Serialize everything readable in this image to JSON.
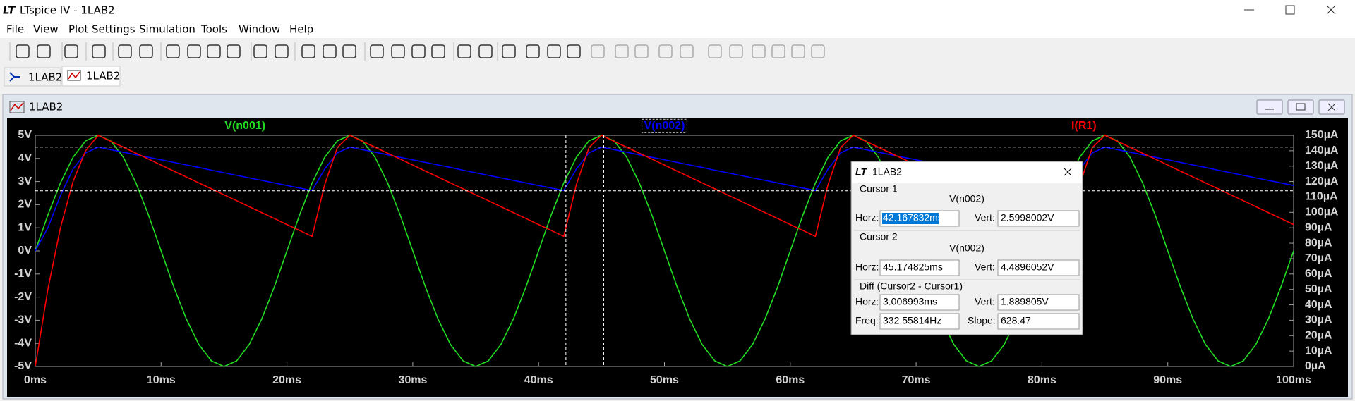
{
  "window": {
    "title": "LTspice IV - 1LAB2"
  },
  "menu": [
    "File",
    "View",
    "Plot Settings",
    "Simulation",
    "Tools",
    "Window",
    "Help"
  ],
  "tabs": [
    "1LAB2",
    "1LAB2"
  ],
  "plot_window": {
    "title": "1LAB2"
  },
  "chart_data": {
    "type": "line",
    "x": [
      0,
      1,
      2,
      3,
      4,
      5,
      6,
      7,
      8,
      9,
      10,
      11,
      12,
      13,
      14,
      15,
      16,
      17,
      18,
      19,
      20,
      21,
      22,
      23,
      24,
      25,
      26,
      27,
      28,
      29,
      30,
      31,
      32,
      33,
      34,
      35,
      36,
      37,
      38,
      39,
      40,
      41,
      42,
      43,
      44,
      45,
      46,
      47,
      48,
      49,
      50,
      51,
      52,
      53,
      54,
      55,
      56,
      57,
      58,
      59,
      60,
      61,
      62,
      63,
      64,
      65,
      66,
      67,
      68,
      69,
      70,
      71,
      72,
      73,
      74,
      75,
      76,
      77,
      78,
      79,
      80,
      81,
      82,
      83,
      84,
      85,
      86,
      87,
      88,
      89,
      90,
      91,
      92,
      93,
      94,
      95,
      96,
      97,
      98,
      99,
      100
    ],
    "series": [
      {
        "name": "V(n001)",
        "color": "#22dd22",
        "values": [
          0,
          1.55,
          2.94,
          4.05,
          4.76,
          5,
          4.76,
          4.05,
          2.94,
          1.55,
          0,
          -1.55,
          -2.94,
          -4.05,
          -4.76,
          -5,
          -4.76,
          -4.05,
          -2.94,
          -1.55,
          0,
          1.55,
          2.94,
          4.05,
          4.76,
          5,
          4.76,
          4.05,
          2.94,
          1.55,
          0,
          -1.55,
          -2.94,
          -4.05,
          -4.76,
          -5,
          -4.76,
          -4.05,
          -2.94,
          -1.55,
          0,
          1.55,
          2.94,
          4.05,
          4.76,
          5,
          4.76,
          4.05,
          2.94,
          1.55,
          0,
          -1.55,
          -2.94,
          -4.05,
          -4.76,
          -5,
          -4.76,
          -4.05,
          -2.94,
          -1.55,
          0,
          1.55,
          2.94,
          4.05,
          4.76,
          5,
          4.76,
          4.05,
          2.94,
          1.55,
          0,
          -1.55,
          -2.94,
          -4.05,
          -4.76,
          -5,
          -4.76,
          -4.05,
          -2.94,
          -1.55,
          0,
          1.55,
          2.94,
          4.05,
          4.76,
          5,
          4.76,
          4.05,
          2.94,
          1.55,
          0,
          -1.55,
          -2.94,
          -4.05,
          -4.76,
          -5,
          -4.76,
          -4.05,
          -2.94,
          -1.55,
          0
        ]
      },
      {
        "name": "V(n002)",
        "color": "#0000ff",
        "values": [
          0,
          1.0,
          2.4,
          3.54,
          4.24,
          4.49,
          4.38,
          4.27,
          4.16,
          4.05,
          3.94,
          3.83,
          3.72,
          3.61,
          3.49,
          3.38,
          3.27,
          3.16,
          3.05,
          2.94,
          2.83,
          2.72,
          2.61,
          3.54,
          4.24,
          4.49,
          4.38,
          4.27,
          4.16,
          4.05,
          3.94,
          3.83,
          3.72,
          3.61,
          3.49,
          3.38,
          3.27,
          3.16,
          3.05,
          2.94,
          2.83,
          2.72,
          2.61,
          3.54,
          4.24,
          4.49,
          4.38,
          4.27,
          4.16,
          4.05,
          3.94,
          3.83,
          3.72,
          3.61,
          3.49,
          3.38,
          3.27,
          3.16,
          3.05,
          2.94,
          2.83,
          2.72,
          2.61,
          3.54,
          4.24,
          4.49,
          4.38,
          4.27,
          4.16,
          4.05,
          3.94,
          3.83,
          3.72,
          3.61,
          3.49,
          3.38,
          3.27,
          3.16,
          3.05,
          2.94,
          2.83,
          2.72,
          2.61,
          3.54,
          4.24,
          4.49,
          4.38,
          4.27,
          4.16,
          4.05,
          3.94,
          3.83,
          3.72,
          3.61,
          3.49,
          3.38,
          3.27,
          3.16,
          3.05,
          2.94,
          2.83
        ]
      },
      {
        "name": "I(R1)",
        "color": "#ff0000",
        "axis": "y2",
        "values": [
          0,
          50,
          90,
          120,
          140,
          150,
          146.1,
          142.3,
          138.4,
          134.6,
          130.7,
          126.8,
          123.0,
          119.1,
          115.3,
          111.4,
          107.6,
          103.7,
          99.8,
          96.0,
          92.1,
          88.3,
          84.4,
          118,
          142,
          150,
          146.1,
          142.3,
          138.4,
          134.6,
          130.7,
          126.8,
          123.0,
          119.1,
          115.3,
          111.4,
          107.6,
          103.7,
          99.8,
          96.0,
          92.1,
          88.3,
          84.4,
          118,
          142,
          150,
          146.1,
          142.3,
          138.4,
          134.6,
          130.7,
          126.8,
          123.0,
          119.1,
          115.3,
          111.4,
          107.6,
          103.7,
          99.8,
          96.0,
          92.1,
          88.3,
          84.4,
          118,
          142,
          150,
          146.1,
          142.3,
          138.4,
          134.6,
          130.7,
          126.8,
          123.0,
          119.1,
          115.3,
          111.4,
          107.6,
          103.7,
          99.8,
          96.0,
          92.1,
          88.3,
          84.4,
          118,
          142,
          150,
          146.1,
          142.3,
          138.4,
          134.6,
          130.7,
          126.8,
          123.0,
          119.1,
          115.3,
          111.4,
          107.6,
          103.7,
          99.8,
          96.0,
          92.1
        ]
      }
    ],
    "xlim": [
      0,
      100
    ],
    "xticks": [
      {
        "value": 0,
        "label": "0ms"
      },
      {
        "value": 10,
        "label": "10ms"
      },
      {
        "value": 20,
        "label": "20ms"
      },
      {
        "value": 30,
        "label": "30ms"
      },
      {
        "value": 40,
        "label": "40ms"
      },
      {
        "value": 50,
        "label": "50ms"
      },
      {
        "value": 60,
        "label": "60ms"
      },
      {
        "value": 70,
        "label": "70ms"
      },
      {
        "value": 80,
        "label": "80ms"
      },
      {
        "value": 90,
        "label": "90ms"
      },
      {
        "value": 100,
        "label": "100ms"
      }
    ],
    "ylim": [
      -5,
      5
    ],
    "yticks": [
      {
        "value": -5,
        "label": "-5V"
      },
      {
        "value": -4,
        "label": "-4V"
      },
      {
        "value": -3,
        "label": "-3V"
      },
      {
        "value": -2,
        "label": "-2V"
      },
      {
        "value": -1,
        "label": "-1V"
      },
      {
        "value": 0,
        "label": "0V"
      },
      {
        "value": 1,
        "label": "1V"
      },
      {
        "value": 2,
        "label": "2V"
      },
      {
        "value": 3,
        "label": "3V"
      },
      {
        "value": 4,
        "label": "4V"
      },
      {
        "value": 5,
        "label": "5V"
      }
    ],
    "y2lim": [
      0,
      150
    ],
    "y2ticks": [
      {
        "value": 0,
        "label": "0µA"
      },
      {
        "value": 10,
        "label": "10µA"
      },
      {
        "value": 20,
        "label": "20µA"
      },
      {
        "value": 30,
        "label": "30µA"
      },
      {
        "value": 40,
        "label": "40µA"
      },
      {
        "value": 50,
        "label": "50µA"
      },
      {
        "value": 60,
        "label": "60µA"
      },
      {
        "value": 70,
        "label": "70µA"
      },
      {
        "value": 80,
        "label": "80µA"
      },
      {
        "value": 90,
        "label": "90µA"
      },
      {
        "value": 100,
        "label": "100µA"
      },
      {
        "value": 110,
        "label": "110µA"
      },
      {
        "value": 120,
        "label": "120µA"
      },
      {
        "value": 130,
        "label": "130µA"
      },
      {
        "value": 140,
        "label": "140µA"
      },
      {
        "value": 150,
        "label": "150µA"
      }
    ],
    "grid": false,
    "cursors": [
      {
        "x": 42.167832,
        "y": 2.5998002
      },
      {
        "x": 45.174825,
        "y": 4.4896052
      }
    ]
  },
  "cursor_dialog": {
    "title": "1LAB2",
    "cursor1": {
      "label": "Cursor 1",
      "trace": "V(n002)",
      "horz_label": "Horz:",
      "horz": "42.167832ms",
      "vert_label": "Vert:",
      "vert": "2.5998002V"
    },
    "cursor2": {
      "label": "Cursor 2",
      "trace": "V(n002)",
      "horz_label": "Horz:",
      "horz": "45.174825ms",
      "vert_label": "Vert:",
      "vert": "4.4896052V"
    },
    "diff": {
      "label": "Diff (Cursor2 - Cursor1)",
      "horz_label": "Horz:",
      "horz": "3.006993ms",
      "vert_label": "Vert:",
      "vert": "1.889805V",
      "freq_label": "Freq:",
      "freq": "332.55814Hz",
      "slope_label": "Slope:",
      "slope": "628.47"
    }
  }
}
